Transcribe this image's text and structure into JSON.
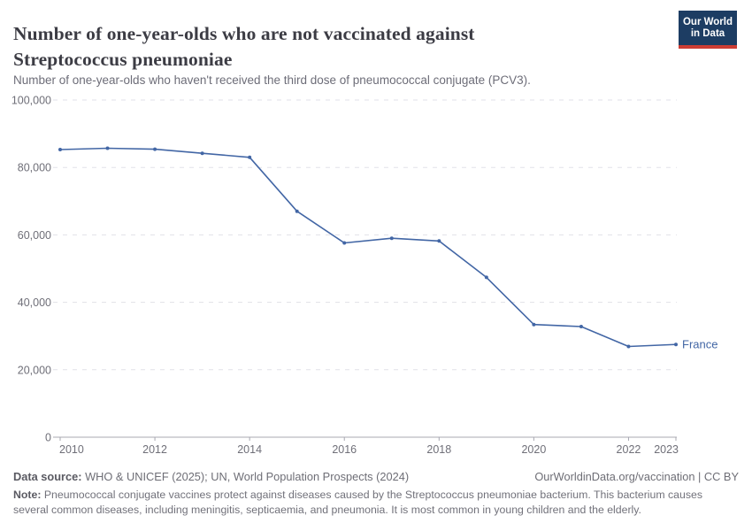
{
  "header": {
    "title": "Number of one-year-olds who are not vaccinated against Streptococcus pneumoniae",
    "subtitle": "Number of one-year-olds who haven't received the third dose of pneumococcal conjugate (PCV3).",
    "logo": {
      "line1": "Our World",
      "line2": "in Data",
      "bg_color": "#1d3d63",
      "accent_color": "#cd3d34"
    }
  },
  "chart_data": {
    "type": "line",
    "title": "Number of one-year-olds who are not vaccinated against Streptococcus pneumoniae",
    "subtitle": "Number of one-year-olds who haven't received the third dose of pneumococcal conjugate (PCV3).",
    "x": [
      2010,
      2011,
      2012,
      2013,
      2014,
      2015,
      2016,
      2017,
      2018,
      2019,
      2020,
      2021,
      2022,
      2023
    ],
    "series": [
      {
        "name": "France",
        "color": "#4266a5",
        "values": [
          85300,
          85700,
          85400,
          84200,
          83000,
          67000,
          57600,
          59000,
          58200,
          47400,
          33400,
          32800,
          26900,
          27500
        ]
      }
    ],
    "xlabel": "",
    "ylabel": "",
    "ylim": [
      0,
      100000
    ],
    "xlim": [
      2010,
      2023
    ],
    "y_ticks": [
      0,
      20000,
      40000,
      60000,
      80000,
      100000
    ],
    "y_tick_labels": [
      "0",
      "20,000",
      "40,000",
      "60,000",
      "80,000",
      "100,000"
    ],
    "x_ticks": [
      2010,
      2012,
      2014,
      2016,
      2018,
      2020,
      2022,
      2023
    ],
    "x_tick_labels": [
      "2010",
      "2012",
      "2014",
      "2016",
      "2018",
      "2020",
      "2022",
      "2023"
    ],
    "grid": "horizontal dashed",
    "legend_position": "end-of-line label",
    "colors": {
      "grid": "#e1e1e8",
      "axis": "#a8a8b2",
      "tick_text": "#6f6f78"
    }
  },
  "footer": {
    "data_source_label": "Data source:",
    "data_source_text": " WHO & UNICEF (2025); UN, World Population Prospects (2024)",
    "attribution": "OurWorldinData.org/vaccination | CC BY",
    "note_label": "Note:",
    "note_text": " Pneumococcal conjugate vaccines protect against diseases caused by the Streptococcus pneumoniae bacterium. This bacterium causes several common diseases, including meningitis, septicaemia, and pneumonia. It is most common in young children and the elderly."
  }
}
